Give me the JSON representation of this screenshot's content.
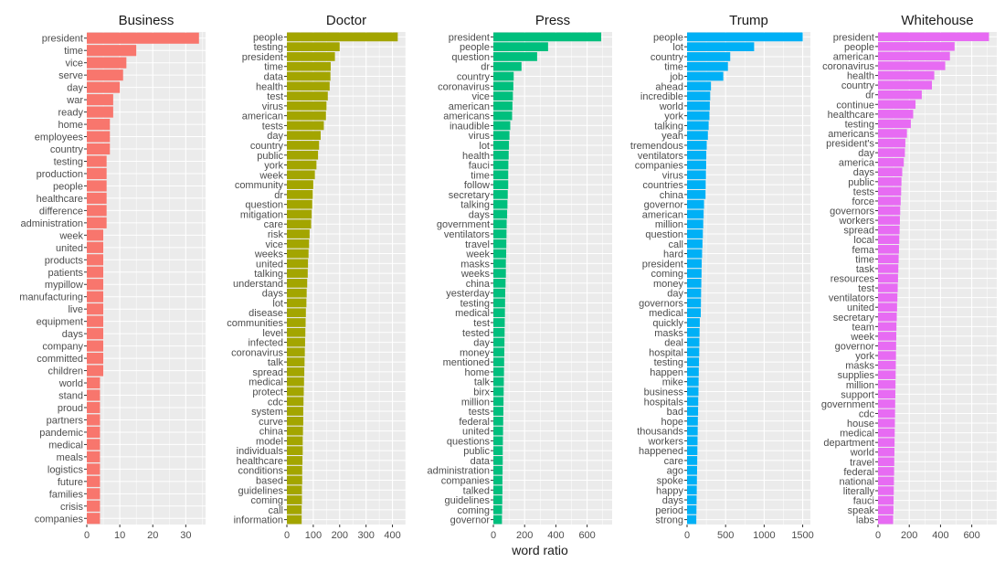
{
  "chart_data": {
    "type": "bar",
    "orientation": "horizontal",
    "facet": "small-multiples",
    "xlabel": "word ratio",
    "ylabel": "",
    "grid": true,
    "background": "#ebebeb",
    "gridline_color": "#ffffff",
    "panels": [
      {
        "title": "Business",
        "color": "#f8766d",
        "xlim": [
          0,
          36
        ],
        "xticks": [
          0,
          10,
          20,
          30
        ],
        "categories": [
          "president",
          "time",
          "vice",
          "serve",
          "day",
          "war",
          "ready",
          "home",
          "employees",
          "country",
          "testing",
          "production",
          "people",
          "healthcare",
          "difference",
          "administration",
          "week",
          "united",
          "products",
          "patients",
          "mypillow",
          "manufacturing",
          "live",
          "equipment",
          "days",
          "company",
          "committed",
          "children",
          "world",
          "stand",
          "proud",
          "partners",
          "pandemic",
          "medical",
          "meals",
          "logistics",
          "future",
          "families",
          "crisis",
          "companies"
        ],
        "values": [
          34,
          15,
          12,
          11,
          10,
          8,
          8,
          7,
          7,
          7,
          6,
          6,
          6,
          6,
          6,
          6,
          5,
          5,
          5,
          5,
          5,
          5,
          5,
          5,
          5,
          5,
          5,
          5,
          4,
          4,
          4,
          4,
          4,
          4,
          4,
          4,
          4,
          4,
          4,
          4
        ]
      },
      {
        "title": "Doctor",
        "color": "#a3a500",
        "xlim": [
          0,
          450
        ],
        "xticks": [
          0,
          100,
          200,
          300,
          400
        ],
        "categories": [
          "people",
          "testing",
          "president",
          "time",
          "data",
          "health",
          "test",
          "virus",
          "american",
          "tests",
          "day",
          "country",
          "public",
          "york",
          "week",
          "community",
          "dr",
          "question",
          "mitigation",
          "care",
          "risk",
          "vice",
          "weeks",
          "united",
          "talking",
          "understand",
          "days",
          "lot",
          "disease",
          "communities",
          "level",
          "infected",
          "coronavirus",
          "talk",
          "spread",
          "medical",
          "protect",
          "cdc",
          "system",
          "curve",
          "china",
          "model",
          "individuals",
          "healthcare",
          "conditions",
          "based",
          "guidelines",
          "coming",
          "call",
          "information"
        ],
        "values": [
          420,
          200,
          182,
          166,
          165,
          162,
          155,
          150,
          148,
          140,
          128,
          122,
          118,
          112,
          106,
          100,
          98,
          96,
          94,
          92,
          86,
          84,
          82,
          80,
          79,
          77,
          75,
          74,
          72,
          71,
          70,
          69,
          68,
          67,
          66,
          65,
          64,
          63,
          62,
          62,
          61,
          60,
          60,
          59,
          58,
          58,
          57,
          57,
          56,
          56
        ]
      },
      {
        "title": "Press",
        "color": "#00bf7d",
        "xlim": [
          0,
          760
        ],
        "xticks": [
          0,
          200,
          400,
          600
        ],
        "categories": [
          "president",
          "people",
          "question",
          "dr",
          "country",
          "coronavirus",
          "vice",
          "american",
          "americans",
          "inaudible",
          "virus",
          "lot",
          "health",
          "fauci",
          "time",
          "follow",
          "secretary",
          "talking",
          "days",
          "government",
          "ventilators",
          "travel",
          "week",
          "masks",
          "weeks",
          "china",
          "yesterday",
          "testing",
          "medical",
          "test",
          "tested",
          "day",
          "money",
          "mentioned",
          "home",
          "talk",
          "birx",
          "million",
          "tests",
          "federal",
          "united",
          "questions",
          "public",
          "data",
          "administration",
          "companies",
          "talked",
          "guidelines",
          "coming",
          "governor"
        ],
        "values": [
          690,
          350,
          280,
          180,
          130,
          128,
          125,
          122,
          120,
          108,
          103,
          100,
          98,
          96,
          95,
          95,
          92,
          90,
          88,
          85,
          84,
          83,
          82,
          80,
          80,
          78,
          76,
          75,
          74,
          73,
          72,
          71,
          70,
          69,
          68,
          67,
          66,
          65,
          64,
          63,
          62,
          61,
          60,
          60,
          59,
          58,
          58,
          57,
          56,
          55
        ]
      },
      {
        "title": "Trump",
        "color": "#00b0f6",
        "xlim": [
          0,
          1600
        ],
        "xticks": [
          0,
          500,
          1000,
          1500
        ],
        "categories": [
          "people",
          "lot",
          "country",
          "time",
          "job",
          "ahead",
          "incredible",
          "world",
          "york",
          "talking",
          "yeah",
          "tremendous",
          "ventilators",
          "companies",
          "virus",
          "countries",
          "china",
          "governor",
          "american",
          "million",
          "question",
          "call",
          "hard",
          "president",
          "coming",
          "money",
          "day",
          "governors",
          "medical",
          "quickly",
          "masks",
          "deal",
          "hospital",
          "testing",
          "happen",
          "mike",
          "business",
          "hospitals",
          "bad",
          "hope",
          "thousands",
          "workers",
          "happened",
          "care",
          "ago",
          "spoke",
          "happy",
          "days",
          "period",
          "strong"
        ],
        "values": [
          1500,
          870,
          560,
          530,
          470,
          310,
          300,
          295,
          290,
          280,
          270,
          255,
          250,
          248,
          245,
          242,
          240,
          220,
          215,
          210,
          205,
          200,
          195,
          190,
          188,
          185,
          182,
          180,
          178,
          165,
          162,
          160,
          158,
          155,
          152,
          150,
          148,
          145,
          143,
          140,
          138,
          136,
          134,
          132,
          130,
          128,
          126,
          124,
          122,
          120
        ]
      },
      {
        "title": "Whitehouse",
        "color": "#e76bf3",
        "xlim": [
          0,
          760
        ],
        "xticks": [
          0,
          200,
          400,
          600
        ],
        "categories": [
          "president",
          "people",
          "american",
          "coronavirus",
          "health",
          "country",
          "dr",
          "continue",
          "healthcare",
          "testing",
          "americans",
          "president's",
          "day",
          "america",
          "days",
          "public",
          "tests",
          "force",
          "governors",
          "workers",
          "spread",
          "local",
          "fema",
          "time",
          "task",
          "resources",
          "test",
          "ventilators",
          "united",
          "secretary",
          "team",
          "week",
          "governor",
          "york",
          "masks",
          "supplies",
          "million",
          "support",
          "government",
          "cdc",
          "house",
          "medical",
          "department",
          "world",
          "travel",
          "federal",
          "national",
          "literally",
          "fauci",
          "speak",
          "labs"
        ],
        "values": [
          710,
          490,
          460,
          430,
          360,
          345,
          280,
          240,
          225,
          210,
          185,
          175,
          172,
          165,
          155,
          150,
          148,
          145,
          142,
          140,
          138,
          136,
          134,
          132,
          130,
          128,
          126,
          124,
          122,
          120,
          118,
          117,
          116,
          115,
          114,
          113,
          112,
          111,
          110,
          109,
          108,
          107,
          106,
          105,
          104,
          103,
          102,
          101,
          100,
          99,
          97
        ]
      }
    ]
  }
}
